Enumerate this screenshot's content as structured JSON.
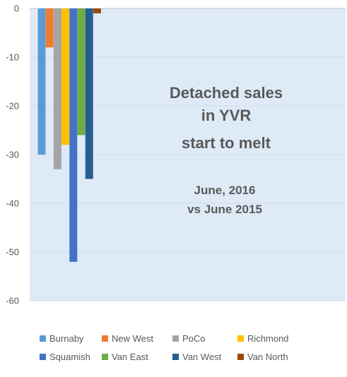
{
  "chart_data": {
    "type": "bar",
    "categories": [
      "Burnaby",
      "New West",
      "PoCo",
      "Richmond",
      "Squamish",
      "Van East",
      "Van West",
      "Van North"
    ],
    "series": [
      {
        "values": [
          -30,
          -8,
          -33,
          -28,
          -52,
          -26,
          -35,
          -1
        ]
      }
    ],
    "colors": [
      "#5B9BD5",
      "#ED7D31",
      "#A5A5A5",
      "#FFC000",
      "#4472C4",
      "#70AD47",
      "#255E91",
      "#9E480E"
    ],
    "ylim": [
      -60,
      0
    ],
    "yticks": [
      0,
      -10,
      -20,
      -30,
      -40,
      -50,
      -60
    ],
    "plot_background": "#DEEBF7",
    "legend_position": "bottom",
    "annotations": [
      {
        "lines": [
          "Detached sales",
          "in YVR",
          "start to melt"
        ]
      },
      {
        "lines": [
          "June, 2016",
          "vs June 2015"
        ]
      }
    ]
  }
}
